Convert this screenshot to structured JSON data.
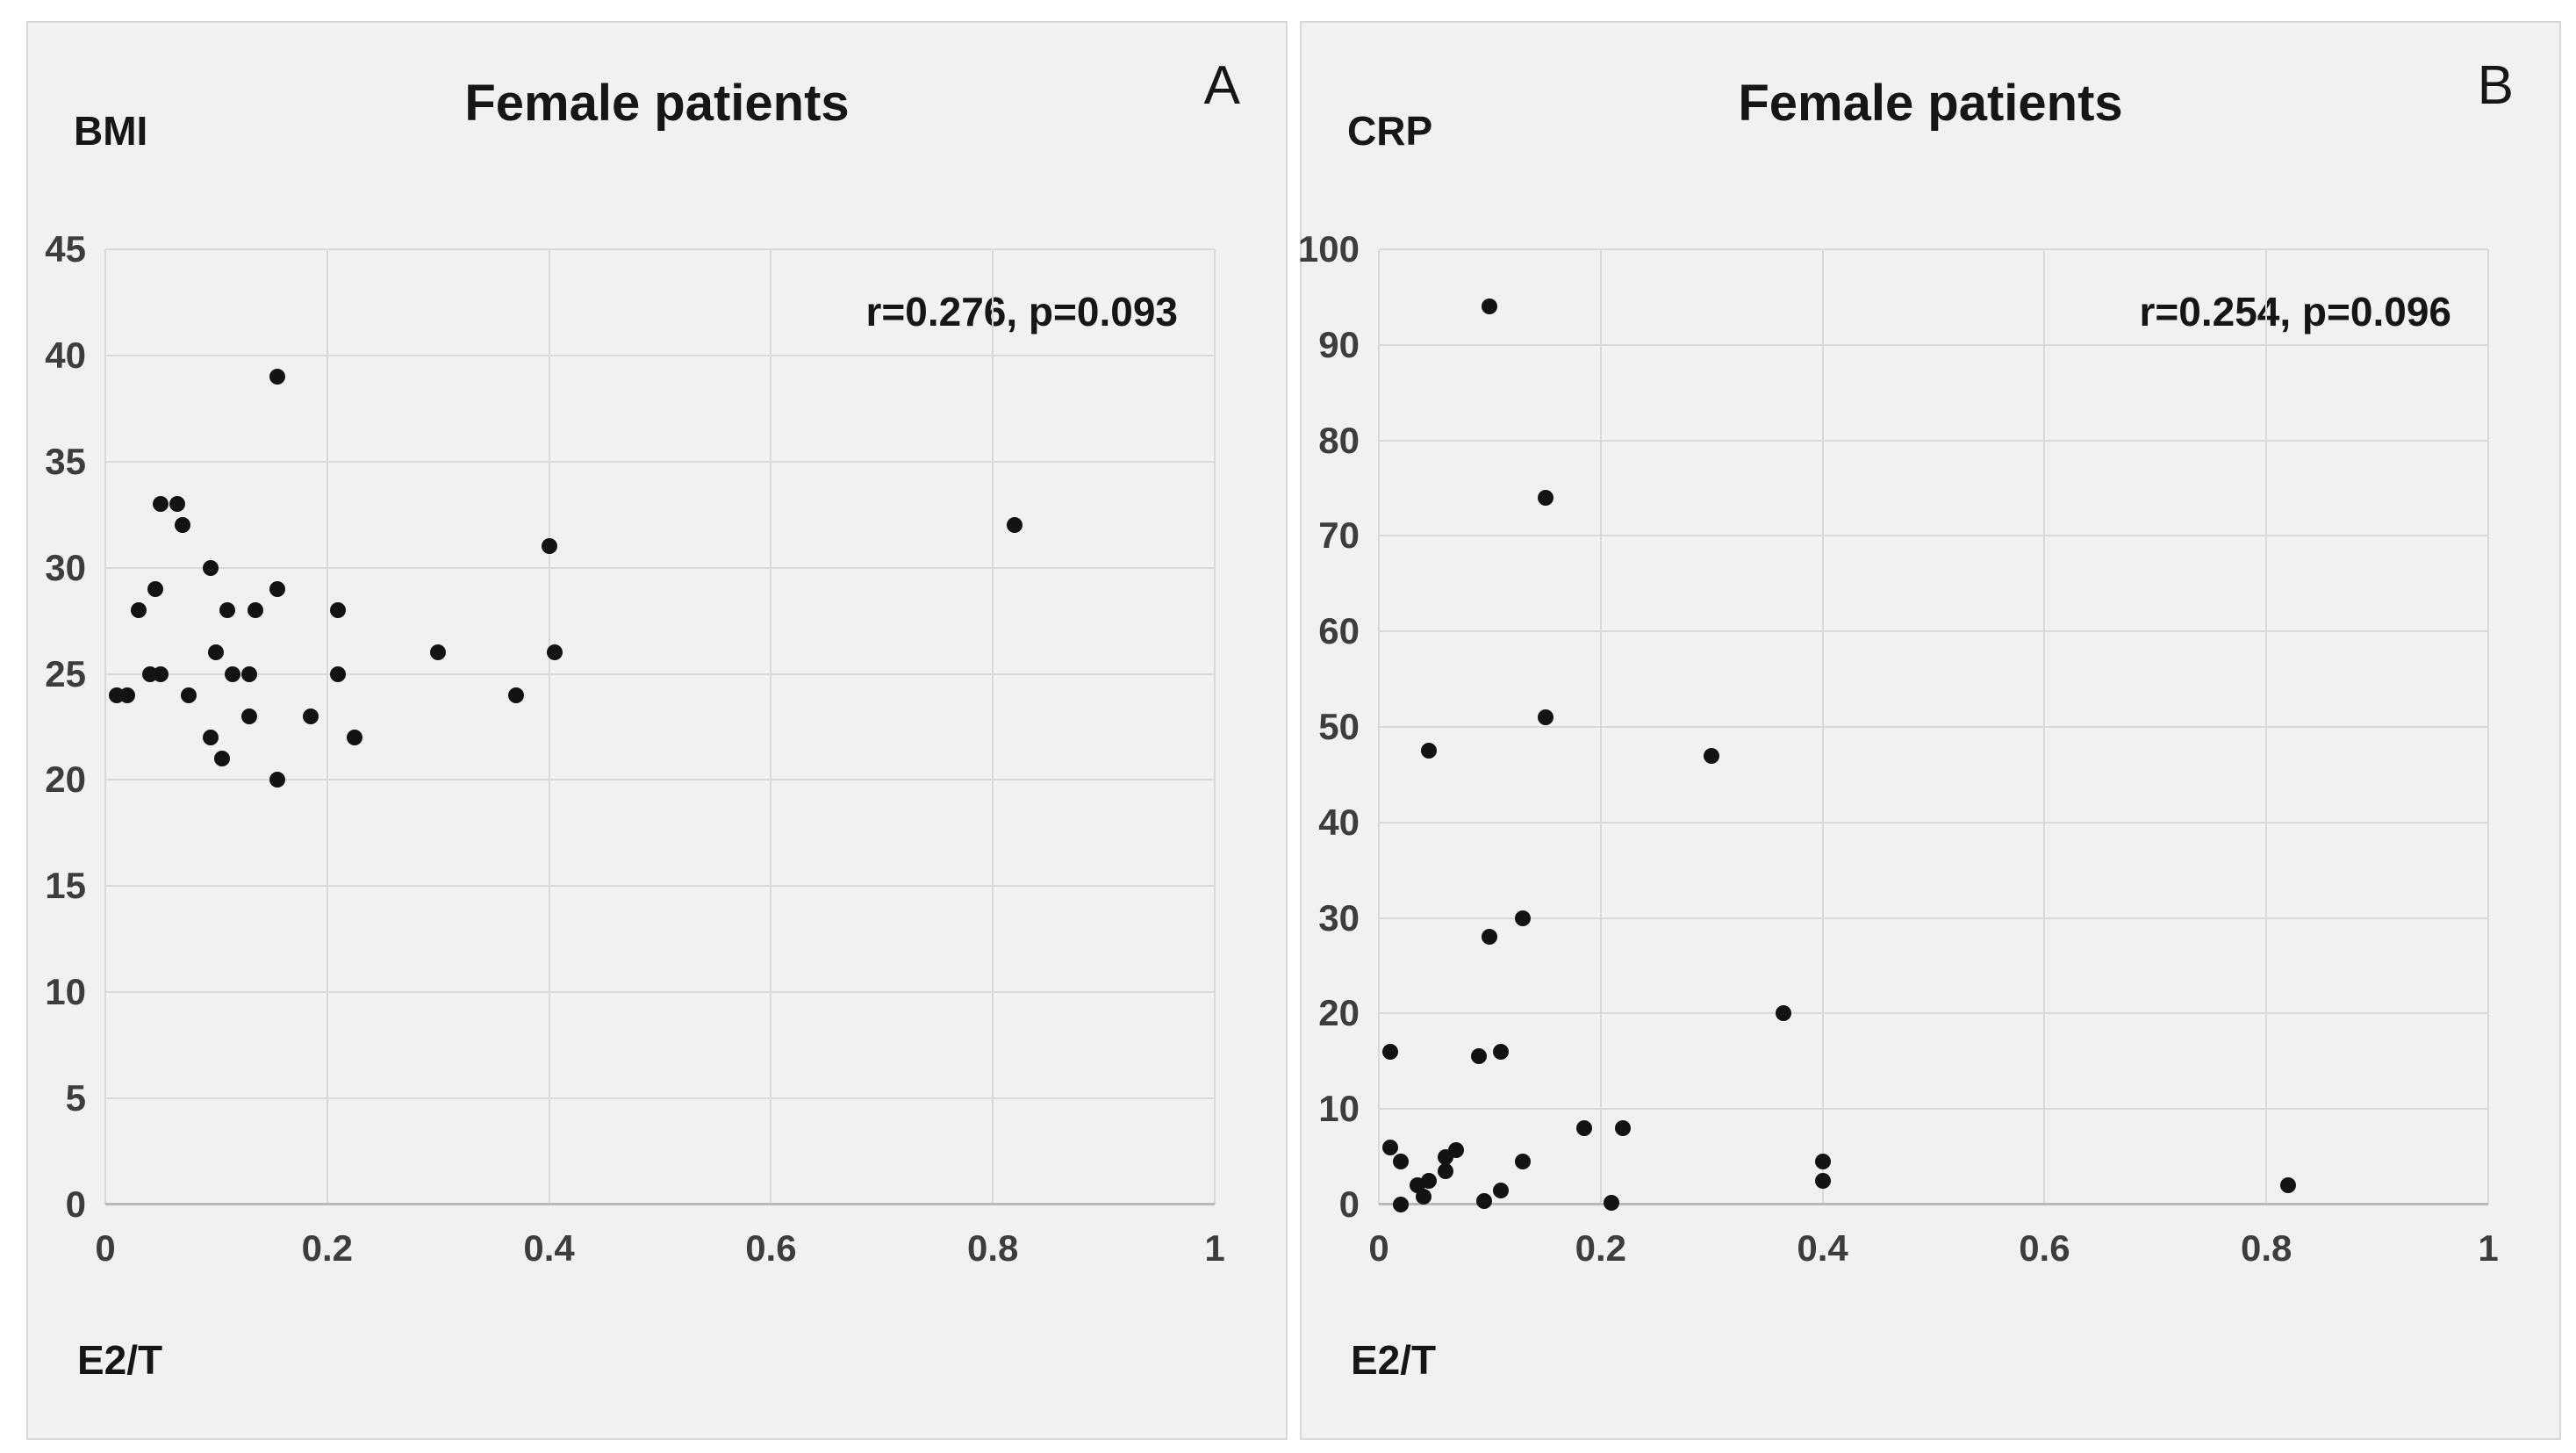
{
  "colors": {
    "page_background": "#ffffff",
    "panel_background": "#f1f1ef",
    "panel_border": "#d8d8d6",
    "gridline": "#d9d9d8",
    "axis_line": "#b9b9b7",
    "marker": "#131313",
    "tick_text": "#3d3d3d",
    "label_text": "#161616"
  },
  "chart_data": [
    {
      "type": "scatter",
      "panel_letter": "A",
      "title": "Female patients",
      "ylabel": "BMI",
      "xlabel": "E2/T",
      "annotation": "r=0.276, p=0.093",
      "xlim": [
        0,
        1
      ],
      "ylim": [
        0,
        45
      ],
      "x_ticks": [
        "0",
        "0.2",
        "0.4",
        "0.6",
        "0.8",
        "1"
      ],
      "x_tick_values": [
        0,
        0.2,
        0.4,
        0.6,
        0.8,
        1
      ],
      "y_ticks": [
        "0",
        "5",
        "10",
        "15",
        "20",
        "25",
        "30",
        "35",
        "40",
        "45"
      ],
      "y_tick_values": [
        0,
        5,
        10,
        15,
        20,
        25,
        30,
        35,
        40,
        45
      ],
      "grid": true,
      "legend": "none",
      "points": [
        [
          0.155,
          39
        ],
        [
          0.05,
          33
        ],
        [
          0.065,
          33
        ],
        [
          0.07,
          32
        ],
        [
          0.82,
          32
        ],
        [
          0.4,
          31
        ],
        [
          0.095,
          30
        ],
        [
          0.045,
          29
        ],
        [
          0.155,
          29
        ],
        [
          0.03,
          28
        ],
        [
          0.11,
          28
        ],
        [
          0.135,
          28
        ],
        [
          0.21,
          28
        ],
        [
          0.1,
          26
        ],
        [
          0.3,
          26
        ],
        [
          0.405,
          26
        ],
        [
          0.04,
          25
        ],
        [
          0.05,
          25
        ],
        [
          0.115,
          25
        ],
        [
          0.13,
          25
        ],
        [
          0.21,
          25
        ],
        [
          0.01,
          24
        ],
        [
          0.02,
          24
        ],
        [
          0.075,
          24
        ],
        [
          0.37,
          24
        ],
        [
          0.13,
          23
        ],
        [
          0.185,
          23
        ],
        [
          0.095,
          22
        ],
        [
          0.225,
          22
        ],
        [
          0.105,
          21
        ],
        [
          0.155,
          20
        ]
      ]
    },
    {
      "type": "scatter",
      "panel_letter": "B",
      "title": "Female patients",
      "ylabel": "CRP",
      "xlabel": "E2/T",
      "annotation": "r=0.254, p=0.096",
      "xlim": [
        0,
        1
      ],
      "ylim": [
        0,
        100
      ],
      "x_ticks": [
        "0",
        "0.2",
        "0.4",
        "0.6",
        "0.8",
        "1"
      ],
      "x_tick_values": [
        0,
        0.2,
        0.4,
        0.6,
        0.8,
        1
      ],
      "y_ticks": [
        "0",
        "10",
        "20",
        "30",
        "40",
        "50",
        "60",
        "70",
        "80",
        "90",
        "100"
      ],
      "y_tick_values": [
        0,
        10,
        20,
        30,
        40,
        50,
        60,
        70,
        80,
        90,
        100
      ],
      "grid": true,
      "legend": "none",
      "points": [
        [
          0.1,
          94
        ],
        [
          0.15,
          74
        ],
        [
          0.15,
          51
        ],
        [
          0.045,
          47.5
        ],
        [
          0.3,
          47
        ],
        [
          0.13,
          30
        ],
        [
          0.1,
          28
        ],
        [
          0.365,
          20
        ],
        [
          0.01,
          16
        ],
        [
          0.11,
          16
        ],
        [
          0.09,
          15.5
        ],
        [
          0.185,
          8
        ],
        [
          0.22,
          8
        ],
        [
          0.01,
          6
        ],
        [
          0.07,
          5.7
        ],
        [
          0.06,
          5
        ],
        [
          0.02,
          4.5
        ],
        [
          0.13,
          4.5
        ],
        [
          0.4,
          4.5
        ],
        [
          0.06,
          3.5
        ],
        [
          0.045,
          2.5
        ],
        [
          0.4,
          2.5
        ],
        [
          0.035,
          2
        ],
        [
          0.82,
          2
        ],
        [
          0.11,
          1.5
        ],
        [
          0.04,
          0.8
        ],
        [
          0.095,
          0.4
        ],
        [
          0.21,
          0.2
        ],
        [
          0.02,
          0
        ]
      ]
    }
  ]
}
